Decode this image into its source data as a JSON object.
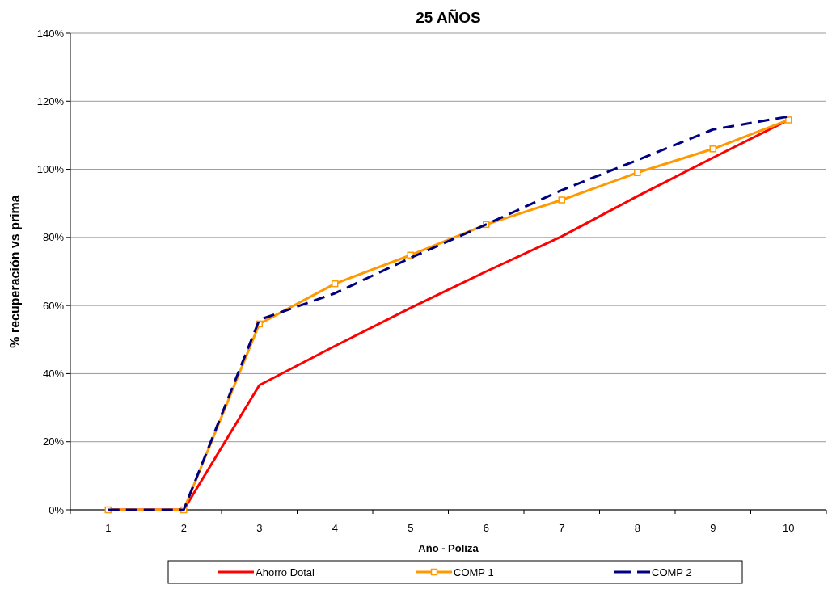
{
  "chart_data": {
    "type": "line",
    "title": "25 AÑOS",
    "xlabel": "Año - Póliza",
    "ylabel": "% recuperación vs prima",
    "categories": [
      "1",
      "2",
      "3",
      "4",
      "5",
      "6",
      "7",
      "8",
      "9",
      "10"
    ],
    "series": [
      {
        "name": "Ahorro Dotal",
        "color": "#ff0000",
        "marker": "none",
        "line_style": "solid",
        "values": [
          0,
          0,
          36.6,
          48.1,
          59.3,
          70.0,
          80.3,
          92.1,
          103.4,
          114.5
        ]
      },
      {
        "name": "COMP 1",
        "color": "#ff9900",
        "marker": "square",
        "line_style": "solid",
        "values": [
          0,
          0,
          54.6,
          66.4,
          74.8,
          83.8,
          91.0,
          99.0,
          106.0,
          114.5
        ]
      },
      {
        "name": "COMP 2",
        "color": "#000080",
        "marker": "none",
        "line_style": "dashed",
        "values": [
          0,
          0,
          55.8,
          63.6,
          74.0,
          83.8,
          93.9,
          102.7,
          111.7,
          115.5
        ]
      }
    ],
    "ylim": [
      0,
      140
    ],
    "yticks": [
      {
        "value": 0,
        "label": "0%"
      },
      {
        "value": 20,
        "label": "20%"
      },
      {
        "value": 40,
        "label": "40%"
      },
      {
        "value": 60,
        "label": "60%"
      },
      {
        "value": 80,
        "label": "80%"
      },
      {
        "value": 100,
        "label": "100%"
      },
      {
        "value": 120,
        "label": "120%"
      },
      {
        "value": 140,
        "label": "140%"
      }
    ],
    "grid": "y",
    "legend": "bottom"
  }
}
